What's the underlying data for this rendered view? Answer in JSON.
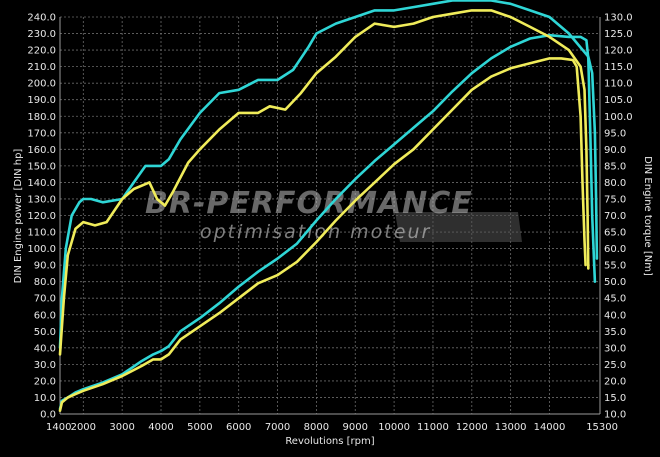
{
  "chart_data": {
    "type": "line",
    "xlabel": "Revolutions [rpm]",
    "ylabel_left": "DIN Engine power [DIN hp]",
    "ylabel_right": "DIN Engine torque [Nm]",
    "x_ticks": [
      1400,
      2000,
      3000,
      4000,
      5000,
      6000,
      7000,
      8000,
      9000,
      10000,
      11000,
      12000,
      13000,
      14000,
      15300
    ],
    "xlim": [
      1400,
      15300
    ],
    "ylim_left": [
      0,
      240
    ],
    "ylim_right": [
      10,
      130
    ],
    "y_left_ticks": [
      "0.0",
      "10.0",
      "20.0",
      "30.0",
      "40.0",
      "50.0",
      "60.0",
      "70.0",
      "80.0",
      "90.0",
      "100.0",
      "110.0",
      "120.0",
      "130.0",
      "140.0",
      "150.0",
      "160.0",
      "170.0",
      "180.0",
      "190.0",
      "200.0",
      "210.0",
      "220.0",
      "230.0",
      "240.0"
    ],
    "y_right_ticks": [
      "10.0",
      "15.0",
      "20.0",
      "25.0",
      "30.0",
      "35.0",
      "40.0",
      "45.0",
      "50.0",
      "55.0",
      "60.0",
      "65.0",
      "70.0",
      "75.0",
      "80.0",
      "85.0",
      "90.0",
      "95.0",
      "100.0",
      "105.0",
      "110.0",
      "115.0",
      "120.0",
      "125.0",
      "130.0"
    ],
    "grid": true,
    "colors": {
      "cyan": "#2fd6d6",
      "yellow": "#f0ec5a"
    },
    "series": [
      {
        "color": "cyan",
        "axis": "left",
        "points": [
          [
            1400,
            3
          ],
          [
            1450,
            8
          ],
          [
            1600,
            10
          ],
          [
            1800,
            13
          ],
          [
            2000,
            15
          ],
          [
            2500,
            19
          ],
          [
            3000,
            24
          ],
          [
            3500,
            32
          ],
          [
            3800,
            36
          ],
          [
            4000,
            38
          ],
          [
            4200,
            41
          ],
          [
            4500,
            50
          ],
          [
            5000,
            58
          ],
          [
            5500,
            67
          ],
          [
            6000,
            77
          ],
          [
            6500,
            86
          ],
          [
            7000,
            94
          ],
          [
            7500,
            103
          ],
          [
            8000,
            117
          ],
          [
            8500,
            130
          ],
          [
            9000,
            142
          ],
          [
            9500,
            153
          ],
          [
            10000,
            163
          ],
          [
            10500,
            173
          ],
          [
            11000,
            183
          ],
          [
            11500,
            195
          ],
          [
            12000,
            206
          ],
          [
            12500,
            215
          ],
          [
            13000,
            222
          ],
          [
            13500,
            227
          ],
          [
            14000,
            229
          ],
          [
            14500,
            228
          ],
          [
            14800,
            228
          ],
          [
            14950,
            226
          ],
          [
            15000,
            215
          ],
          [
            15050,
            170
          ],
          [
            15100,
            120
          ],
          [
            15150,
            90
          ],
          [
            15170,
            80
          ]
        ]
      },
      {
        "color": "cyan",
        "axis": "right",
        "points": [
          [
            1400,
            30
          ],
          [
            1450,
            45
          ],
          [
            1550,
            60
          ],
          [
            1700,
            70
          ],
          [
            1900,
            74
          ],
          [
            2000,
            75
          ],
          [
            2200,
            75
          ],
          [
            2500,
            74
          ],
          [
            3000,
            75
          ],
          [
            3300,
            80
          ],
          [
            3600,
            85
          ],
          [
            4000,
            85
          ],
          [
            4200,
            87
          ],
          [
            4500,
            93
          ],
          [
            5000,
            101
          ],
          [
            5500,
            107
          ],
          [
            6000,
            108
          ],
          [
            6500,
            111
          ],
          [
            7000,
            111
          ],
          [
            7400,
            114
          ],
          [
            7800,
            121
          ],
          [
            8000,
            125
          ],
          [
            8500,
            128
          ],
          [
            9000,
            130
          ],
          [
            9500,
            132
          ],
          [
            10000,
            132
          ],
          [
            10500,
            133
          ],
          [
            11000,
            134
          ],
          [
            11500,
            135
          ],
          [
            12000,
            135
          ],
          [
            12500,
            135
          ],
          [
            13000,
            134
          ],
          [
            13500,
            132
          ],
          [
            14000,
            130
          ],
          [
            14500,
            125
          ],
          [
            15000,
            118
          ],
          [
            15100,
            113
          ],
          [
            15170,
            95
          ],
          [
            15200,
            75
          ],
          [
            15220,
            57
          ]
        ]
      },
      {
        "color": "yellow",
        "axis": "left",
        "points": [
          [
            1400,
            2
          ],
          [
            1450,
            7
          ],
          [
            1600,
            10
          ],
          [
            1800,
            12
          ],
          [
            2000,
            14
          ],
          [
            2500,
            18
          ],
          [
            3000,
            23
          ],
          [
            3500,
            29
          ],
          [
            3800,
            33
          ],
          [
            4000,
            33
          ],
          [
            4200,
            36
          ],
          [
            4500,
            45
          ],
          [
            5000,
            53
          ],
          [
            5500,
            61
          ],
          [
            6000,
            70
          ],
          [
            6500,
            79
          ],
          [
            7000,
            84
          ],
          [
            7500,
            92
          ],
          [
            8000,
            104
          ],
          [
            8500,
            117
          ],
          [
            9000,
            129
          ],
          [
            9500,
            140
          ],
          [
            10000,
            151
          ],
          [
            10500,
            160
          ],
          [
            11000,
            172
          ],
          [
            11500,
            184
          ],
          [
            12000,
            196
          ],
          [
            12500,
            204
          ],
          [
            13000,
            209
          ],
          [
            13500,
            212
          ],
          [
            14000,
            215
          ],
          [
            14300,
            215
          ],
          [
            14600,
            214
          ],
          [
            14700,
            210
          ],
          [
            14800,
            180
          ],
          [
            14850,
            140
          ],
          [
            14900,
            105
          ],
          [
            14930,
            90
          ]
        ]
      },
      {
        "color": "yellow",
        "axis": "right",
        "points": [
          [
            1400,
            28
          ],
          [
            1500,
            45
          ],
          [
            1600,
            58
          ],
          [
            1800,
            66
          ],
          [
            2000,
            68
          ],
          [
            2300,
            67
          ],
          [
            2600,
            68
          ],
          [
            3000,
            75
          ],
          [
            3300,
            78
          ],
          [
            3700,
            80
          ],
          [
            3900,
            75
          ],
          [
            4100,
            73
          ],
          [
            4300,
            77
          ],
          [
            4700,
            86
          ],
          [
            5000,
            90
          ],
          [
            5500,
            96
          ],
          [
            6000,
            101
          ],
          [
            6500,
            101
          ],
          [
            6800,
            103
          ],
          [
            7200,
            102
          ],
          [
            7600,
            107
          ],
          [
            8000,
            113
          ],
          [
            8500,
            118
          ],
          [
            9000,
            124
          ],
          [
            9500,
            128
          ],
          [
            10000,
            127
          ],
          [
            10500,
            128
          ],
          [
            11000,
            130
          ],
          [
            11500,
            131
          ],
          [
            12000,
            132
          ],
          [
            12500,
            132
          ],
          [
            13000,
            130
          ],
          [
            13500,
            127
          ],
          [
            14000,
            124
          ],
          [
            14500,
            120
          ],
          [
            14800,
            115
          ],
          [
            14900,
            108
          ],
          [
            14950,
            90
          ],
          [
            14980,
            70
          ],
          [
            15000,
            54
          ]
        ]
      }
    ]
  },
  "watermark": {
    "brand": "BR-PERFORMANCE",
    "subtitle": "optimisation moteur"
  }
}
